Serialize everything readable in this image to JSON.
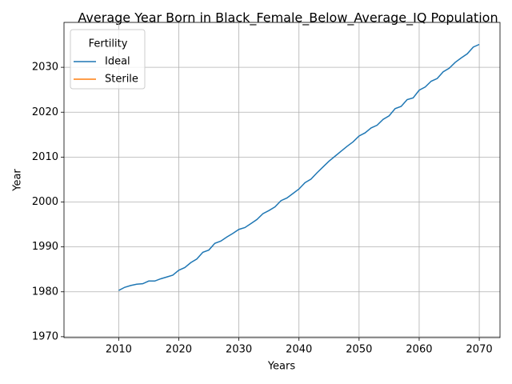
{
  "chart_data": {
    "type": "line",
    "title": "Average Year Born in Black_Female_Below_Average_IQ Population",
    "xlabel": "Years",
    "ylabel": "Year",
    "x": [
      2010,
      2011,
      2012,
      2013,
      2014,
      2015,
      2016,
      2017,
      2018,
      2019,
      2020,
      2021,
      2022,
      2023,
      2024,
      2025,
      2026,
      2027,
      2028,
      2029,
      2030,
      2031,
      2032,
      2033,
      2034,
      2035,
      2036,
      2037,
      2038,
      2039,
      2040,
      2041,
      2042,
      2043,
      2044,
      2045,
      2046,
      2047,
      2048,
      2049,
      2050,
      2051,
      2052,
      2053,
      2054,
      2055,
      2056,
      2057,
      2058,
      2059,
      2060,
      2061,
      2062,
      2063,
      2064,
      2065,
      2066,
      2067,
      2068,
      2069,
      2070
    ],
    "series": [
      {
        "name": "Ideal",
        "color": "#1f77b4",
        "values": [
          1980.3,
          1981.0,
          1981.4,
          1981.7,
          1981.8,
          1982.4,
          1982.4,
          1982.9,
          1983.3,
          1983.7,
          1984.8,
          1985.4,
          1986.5,
          1987.3,
          1988.8,
          1989.3,
          1990.8,
          1991.3,
          1992.2,
          1993.0,
          1993.9,
          1994.3,
          1995.2,
          1996.1,
          1997.4,
          1998.1,
          1998.9,
          2000.3,
          2000.9,
          2001.9,
          2002.9,
          2004.3,
          2005.1,
          2006.5,
          2007.8,
          2009.1,
          2010.2,
          2011.3,
          2012.4,
          2013.4,
          2014.7,
          2015.4,
          2016.5,
          2017.1,
          2018.4,
          2019.2,
          2020.8,
          2021.3,
          2022.8,
          2023.2,
          2024.9,
          2025.6,
          2026.9,
          2027.5,
          2029.0,
          2029.8,
          2031.1,
          2032.1,
          2033.0,
          2034.5,
          2035.1
        ]
      },
      {
        "name": "Sterile",
        "color": "#ff7f0e",
        "values": [
          null,
          null,
          null,
          null,
          null,
          null,
          null,
          null,
          null,
          null,
          null,
          null,
          null,
          null,
          null,
          null,
          null,
          null,
          null,
          null,
          null,
          null,
          null,
          null,
          null,
          null,
          null,
          null,
          null,
          null,
          null,
          null,
          null,
          null,
          null,
          null,
          null,
          null,
          null,
          null,
          null,
          null,
          null,
          null,
          null,
          null,
          null,
          null,
          null,
          null,
          null,
          null,
          null,
          null,
          null,
          null,
          null,
          null,
          null,
          null,
          null
        ]
      }
    ],
    "legend_title": "Fertility",
    "legend": "upper left",
    "xlim": [
      2000.9,
      2073.45
    ],
    "xticks": [
      2010,
      2020,
      2030,
      2040,
      2050,
      2060,
      2070
    ],
    "ylim": [
      1969.8,
      2040
    ],
    "yticks": [
      1970,
      1980,
      1990,
      2000,
      2010,
      2020,
      2030
    ],
    "grid": true
  }
}
